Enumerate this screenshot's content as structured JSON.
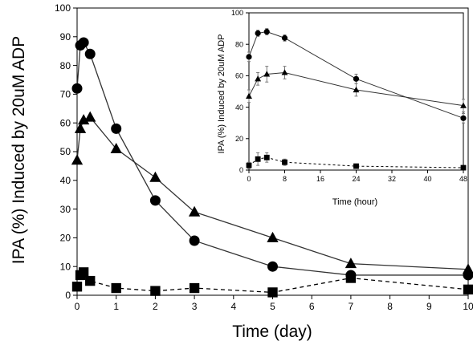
{
  "chart_data": [
    {
      "type": "line",
      "title": "",
      "xlabel": "Time (day)",
      "ylabel": "IPA (%) Induced by 20uM ADP",
      "xlim": [
        0,
        10
      ],
      "ylim": [
        0,
        100
      ],
      "xticks": [
        0,
        1,
        2,
        3,
        4,
        5,
        6,
        7,
        8,
        9,
        10
      ],
      "yticks": [
        0,
        10,
        20,
        30,
        40,
        50,
        60,
        70,
        80,
        90,
        100
      ],
      "grid": false,
      "legend": "none",
      "series": [
        {
          "marker": "circle",
          "line": "solid",
          "x": [
            0,
            0.083,
            0.167,
            0.333,
            1,
            2,
            3,
            5,
            7,
            10
          ],
          "y": [
            72,
            87,
            88,
            84,
            58,
            33,
            19,
            10,
            7,
            7
          ]
        },
        {
          "marker": "triangle",
          "line": "solid",
          "x": [
            0,
            0.083,
            0.167,
            0.333,
            1,
            2,
            3,
            5,
            7,
            10
          ],
          "y": [
            47,
            58,
            61,
            62,
            51,
            41,
            29,
            20,
            11,
            9
          ]
        },
        {
          "marker": "square",
          "line": "dashed",
          "x": [
            0,
            0.083,
            0.167,
            0.333,
            1,
            2,
            3,
            5,
            7,
            10
          ],
          "y": [
            3,
            7,
            8,
            5,
            2.5,
            1.5,
            2.5,
            1,
            6,
            2
          ]
        }
      ]
    },
    {
      "type": "line",
      "title": "",
      "xlabel": "Time (hour)",
      "ylabel": "IPA (%) Induced by 20uM ADP",
      "xlim": [
        0,
        48
      ],
      "ylim": [
        0,
        100
      ],
      "xticks": [
        0,
        8,
        16,
        24,
        32,
        40,
        48
      ],
      "yticks": [
        0,
        20,
        40,
        60,
        80,
        100
      ],
      "grid": false,
      "legend": "none",
      "series": [
        {
          "marker": "circle",
          "line": "solid",
          "x": [
            0,
            2,
            4,
            8,
            24,
            48
          ],
          "y": [
            72,
            87,
            88,
            84,
            58,
            33
          ],
          "err": [
            3,
            2,
            2,
            2,
            3,
            3
          ]
        },
        {
          "marker": "triangle",
          "line": "solid",
          "x": [
            0,
            2,
            4,
            8,
            24,
            48
          ],
          "y": [
            47,
            58,
            61,
            62,
            51,
            41
          ],
          "err": [
            4,
            4,
            5,
            4,
            4,
            4
          ]
        },
        {
          "marker": "square",
          "line": "dashed",
          "x": [
            0,
            2,
            4,
            8,
            24,
            48
          ],
          "y": [
            3,
            7,
            8,
            5,
            2.5,
            1.5
          ],
          "err": [
            2,
            4,
            3,
            2,
            1,
            1
          ]
        }
      ]
    }
  ]
}
